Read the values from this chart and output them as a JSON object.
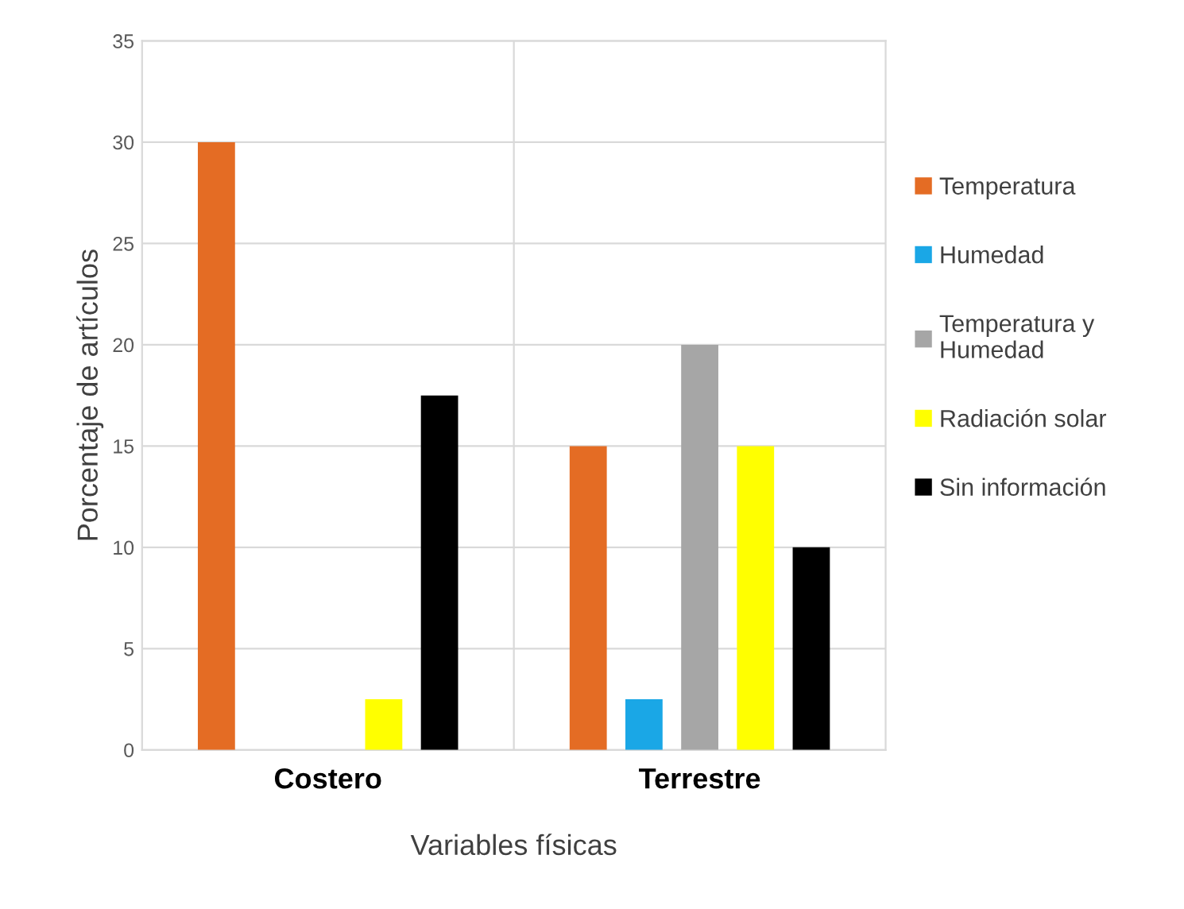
{
  "chart_data": {
    "type": "bar",
    "xlabel": "Variables físicas",
    "ylabel": "Porcentaje de artículos",
    "categories": [
      "Costero",
      "Terrestre"
    ],
    "series": [
      {
        "name": "Temperatura",
        "color": "#e46c24",
        "values": [
          30,
          15
        ]
      },
      {
        "name": "Humedad",
        "color": "#1aa7e6",
        "values": [
          0,
          2.5
        ]
      },
      {
        "name": "Temperatura y\nHumedad",
        "color": "#a6a6a6",
        "values": [
          0,
          20
        ]
      },
      {
        "name": "Radiación solar",
        "color": "#ffff00",
        "values": [
          2.5,
          15
        ]
      },
      {
        "name": "Sin información",
        "color": "#000000",
        "values": [
          17.5,
          10
        ]
      }
    ],
    "ylim": [
      0,
      35
    ],
    "yticks": [
      0,
      5,
      10,
      15,
      20,
      25,
      30,
      35
    ],
    "grid": true,
    "legend": "right"
  }
}
